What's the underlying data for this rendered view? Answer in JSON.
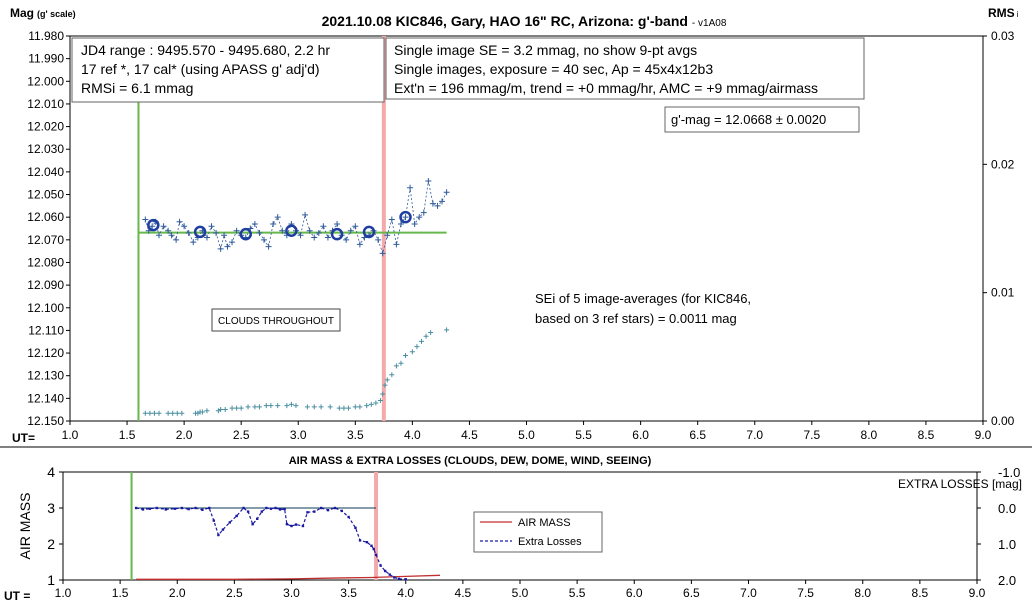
{
  "colors": {
    "series": "#2f5b9a",
    "avg": "#1f3fa0",
    "green": "#66b84a",
    "pink": "#f4aaaa",
    "airmass": "#c03030",
    "losses": "#1a1aa0",
    "rms": "#4a8fa0"
  },
  "chart_data": [
    {
      "type": "scatter",
      "title": "2021.10.08 KIC846, Gary, HAO 16\" RC, Arizona: g'-band",
      "version": "- v1A08",
      "ylabel_main": "Mag",
      "ylabel_sub": "(g' scale)",
      "y2label_main": "RMS",
      "y2label_sub": "i",
      "xlabel": "UT=",
      "xlim": [
        1.0,
        9.0
      ],
      "ylim": [
        12.15,
        11.98
      ],
      "y_reversed": true,
      "y2lim": [
        0,
        0.03
      ],
      "x_ticks": [
        "1.0",
        "1.5",
        "2.0",
        "2.5",
        "3.0",
        "3.5",
        "4.0",
        "4.5",
        "5.0",
        "5.5",
        "6.0",
        "6.5",
        "7.0",
        "7.5",
        "8.0",
        "8.5",
        "9.0"
      ],
      "y_ticks": [
        "11.980",
        "11.990",
        "12.000",
        "12.010",
        "12.020",
        "12.030",
        "12.040",
        "12.050",
        "12.060",
        "12.070",
        "12.080",
        "12.090",
        "12.100",
        "12.110",
        "12.120",
        "12.130",
        "12.140",
        "12.150"
      ],
      "y2_ticks": [
        "0.03",
        "0.02",
        "0.01",
        "0.00"
      ],
      "infobox1": [
        "JD4 range : 9495.570 - 9495.680,  2.2  hr",
        "17 ref *, 17 cal* (using APASS g' adj'd)",
        "RMSi = 6.1 mmag"
      ],
      "infobox2": [
        "Single image SE = 3.2 mmag, no show  9-pt avgs",
        "Single images, exposure = 40 sec, Ap = 45x4x12b3",
        "Ext'n = 196 mmag/m, trend = +0 mmag/hr, AMC = +9 mmag/airmass"
      ],
      "result_label": "g'-mag = 12.0668 ± 0.0020",
      "sei_note": [
        "SEi of 5 image-averages (for KIC846,",
        "based on 3 ref stars) = 0.0011 mag"
      ],
      "clouds_note": "CLOUDS THROUGHOUT",
      "green_line_x": 1.6,
      "pink_line_x": 3.75,
      "mean_mag": 12.0668,
      "mean_line_x": [
        1.6,
        4.3
      ],
      "series": [
        {
          "name": "single images",
          "x": [
            1.66,
            1.69,
            1.72,
            1.75,
            1.78,
            1.82,
            1.86,
            1.89,
            1.93,
            1.96,
            2.0,
            2.04,
            2.08,
            2.12,
            2.16,
            2.2,
            2.24,
            2.28,
            2.32,
            2.35,
            2.38,
            2.42,
            2.46,
            2.5,
            2.54,
            2.58,
            2.62,
            2.66,
            2.7,
            2.74,
            2.78,
            2.82,
            2.86,
            2.9,
            2.94,
            2.98,
            3.02,
            3.06,
            3.1,
            3.14,
            3.18,
            3.22,
            3.26,
            3.3,
            3.34,
            3.38,
            3.42,
            3.46,
            3.5,
            3.54,
            3.58,
            3.62,
            3.66,
            3.7,
            3.74,
            3.78,
            3.82,
            3.86,
            3.9,
            3.94,
            3.98,
            4.02,
            4.06,
            4.1,
            4.14,
            4.18,
            4.22,
            4.26,
            4.3
          ],
          "y": [
            12.061,
            12.066,
            12.064,
            12.062,
            12.068,
            12.064,
            12.066,
            12.068,
            12.07,
            12.062,
            12.064,
            12.067,
            12.071,
            12.069,
            12.066,
            12.069,
            12.064,
            12.067,
            12.074,
            12.068,
            12.073,
            12.071,
            12.066,
            12.068,
            12.069,
            12.065,
            12.063,
            12.067,
            12.07,
            12.073,
            12.063,
            12.06,
            12.066,
            12.068,
            12.063,
            12.066,
            12.068,
            12.059,
            12.066,
            12.069,
            12.067,
            12.064,
            12.069,
            12.066,
            12.063,
            12.068,
            12.07,
            12.066,
            12.064,
            12.072,
            12.069,
            12.068,
            12.066,
            12.07,
            12.076,
            12.068,
            12.061,
            12.072,
            12.063,
            12.06,
            12.047,
            12.063,
            12.06,
            12.058,
            12.044,
            12.054,
            12.055,
            12.053,
            12.049
          ]
        },
        {
          "name": "image averages",
          "x": [
            1.73,
            2.14,
            2.54,
            2.94,
            3.34,
            3.62,
            3.94
          ],
          "y": [
            12.0635,
            12.0665,
            12.0675,
            12.066,
            12.0675,
            12.0665,
            12.06
          ]
        },
        {
          "name": "RMSi",
          "x": [
            1.66,
            1.7,
            1.74,
            1.78,
            1.86,
            1.9,
            1.94,
            1.98,
            2.1,
            2.12,
            2.14,
            2.16,
            2.2,
            2.3,
            2.32,
            2.36,
            2.42,
            2.46,
            2.5,
            2.56,
            2.62,
            2.66,
            2.72,
            2.76,
            2.82,
            2.9,
            2.94,
            2.98,
            3.08,
            3.14,
            3.2,
            3.28,
            3.36,
            3.4,
            3.44,
            3.5,
            3.54,
            3.6,
            3.64,
            3.68,
            3.72,
            3.74,
            3.76,
            3.78,
            3.82,
            3.86,
            3.9,
            3.94,
            4.0,
            4.04,
            4.08,
            4.12,
            4.16,
            4.3
          ],
          "y": [
            0.0006,
            0.0006,
            0.0006,
            0.0006,
            0.0006,
            0.0006,
            0.0006,
            0.0006,
            0.0006,
            0.0006,
            0.0007,
            0.0007,
            0.0008,
            0.0008,
            0.0009,
            0.0009,
            0.001,
            0.001,
            0.001,
            0.0011,
            0.0011,
            0.0011,
            0.0012,
            0.0012,
            0.0012,
            0.0012,
            0.0013,
            0.0012,
            0.0011,
            0.0011,
            0.0011,
            0.0011,
            0.001,
            0.001,
            0.001,
            0.0011,
            0.0011,
            0.0012,
            0.0013,
            0.0014,
            0.0016,
            0.0021,
            0.0028,
            0.0032,
            0.0036,
            0.0043,
            0.0045,
            0.0051,
            0.0054,
            0.0058,
            0.0062,
            0.0066,
            0.0069,
            0.0071
          ]
        }
      ]
    },
    {
      "type": "line",
      "title": "AIR MASS & EXTRA LOSSES (CLOUDS, DEW, DOME, WIND, SEEING)",
      "ylabel": "AIR MASS",
      "y2label": "EXTRA LOSSES [mag]",
      "xlabel": "UT =",
      "xlim": [
        1.0,
        9.0
      ],
      "ylim": [
        1,
        4
      ],
      "y2lim": [
        2.0,
        -1.0
      ],
      "x_ticks": [
        "1.0",
        "1.5",
        "2.0",
        "2.5",
        "3.0",
        "3.5",
        "4.0",
        "4.5",
        "5.0",
        "5.5",
        "6.0",
        "6.5",
        "7.0",
        "7.5",
        "8.0",
        "8.5",
        "9.0"
      ],
      "y_ticks": [
        "1",
        "2",
        "3",
        "4"
      ],
      "y2_ticks": [
        "2.0",
        "1.0",
        "0.0",
        "-1.0"
      ],
      "legend": [
        "AIR MASS",
        "Extra Losses"
      ],
      "green_line_x": 1.6,
      "pink_line_x": 3.74,
      "zero_line_x": [
        1.64,
        3.74
      ],
      "series": [
        {
          "name": "AIR MASS",
          "x": [
            1.64,
            2.0,
            2.5,
            3.0,
            3.3,
            3.5,
            3.7,
            3.8,
            4.0,
            4.3
          ],
          "y": [
            1.02,
            1.02,
            1.02,
            1.03,
            1.05,
            1.06,
            1.07,
            1.08,
            1.1,
            1.13
          ]
        },
        {
          "name": "Extra Losses",
          "x": [
            1.64,
            1.7,
            1.76,
            1.82,
            1.9,
            1.98,
            2.04,
            2.1,
            2.16,
            2.22,
            2.28,
            2.32,
            2.36,
            2.4,
            2.46,
            2.52,
            2.58,
            2.62,
            2.66,
            2.7,
            2.74,
            2.78,
            2.82,
            2.86,
            2.9,
            2.94,
            2.96,
            3.0,
            3.04,
            3.1,
            3.14,
            3.2,
            3.26,
            3.32,
            3.38,
            3.44,
            3.5,
            3.56,
            3.6,
            3.66,
            3.7,
            3.72,
            3.74,
            3.78,
            3.82,
            3.86,
            3.9,
            3.94,
            4.0
          ],
          "y": [
            0.0,
            0.04,
            0.02,
            0.0,
            0.04,
            0.02,
            0.0,
            0.03,
            0.0,
            0.05,
            0.0,
            0.35,
            0.75,
            0.6,
            0.4,
            0.22,
            0.0,
            0.1,
            0.45,
            0.3,
            0.1,
            0.0,
            0.02,
            0.0,
            0.04,
            0.03,
            0.45,
            0.5,
            0.46,
            0.5,
            0.12,
            0.1,
            0.0,
            0.06,
            0.0,
            0.08,
            0.25,
            0.55,
            0.9,
            0.95,
            1.05,
            1.14,
            1.3,
            1.6,
            1.75,
            1.85,
            1.93,
            1.97,
            1.98
          ]
        }
      ]
    }
  ]
}
